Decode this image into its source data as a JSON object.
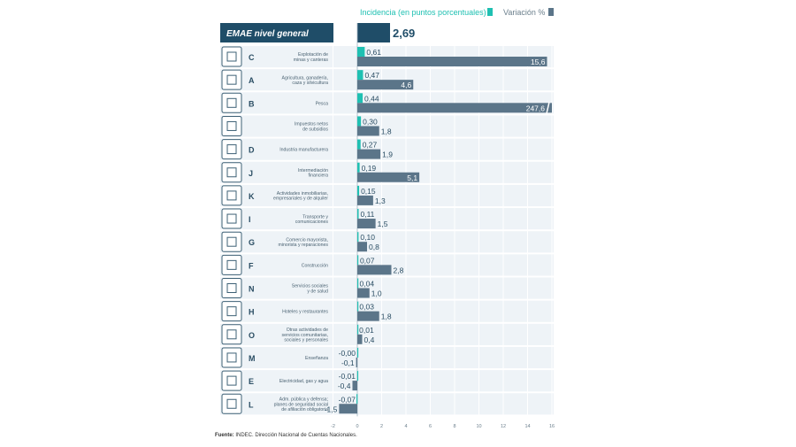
{
  "legend": {
    "incidence": "Incidencia (en puntos porcentuales)",
    "variation": "Variación %"
  },
  "colors": {
    "incidence": "#1fc0b2",
    "variation": "#5b7589",
    "header": "#1f4d68",
    "row_bg": "#eef3f7",
    "icon_border": "#3e6176"
  },
  "header": {
    "label": "EMAE nivel general",
    "value": "2,69"
  },
  "source": {
    "label": "Fuente:",
    "text": " INDEC. Dirección Nacional de Cuentas Nacionales."
  },
  "chart_data": {
    "type": "bar",
    "orientation": "horizontal",
    "title": "",
    "headline": {
      "label": "EMAE nivel general",
      "incidence": 2.69,
      "incidence_label": "2,69"
    },
    "xlim": [
      -2,
      16
    ],
    "x_ticks": [
      "-2",
      "0",
      "2",
      "4",
      "6",
      "8",
      "10",
      "12",
      "14",
      "16"
    ],
    "grid": true,
    "legend_position": "top-right",
    "categories": [
      {
        "code": "C",
        "icon": "mining-icon",
        "lines": [
          "Explotación de",
          "minas y canteras"
        ],
        "inc": 0.61,
        "inc_label": "0,61",
        "var": 15.6,
        "var_label": "15,6"
      },
      {
        "code": "A",
        "icon": "agriculture-icon",
        "lines": [
          "Agricultura, ganadería,",
          "caza y silvicultura"
        ],
        "inc": 0.47,
        "inc_label": "0,47",
        "var": 4.6,
        "var_label": "4,6"
      },
      {
        "code": "B",
        "icon": "fish-icon",
        "lines": [
          "Pesca"
        ],
        "inc": 0.44,
        "inc_label": "0,44",
        "var": 247.6,
        "var_label": "247,6",
        "truncated": true
      },
      {
        "code": "",
        "icon": "tax-document-icon",
        "lines": [
          "Impuestos netos",
          "de subsidios"
        ],
        "inc": 0.3,
        "inc_label": "0,30",
        "var": 1.8,
        "var_label": "1,8"
      },
      {
        "code": "D",
        "icon": "gears-icon",
        "lines": [
          "Industria manufacturera"
        ],
        "inc": 0.27,
        "inc_label": "0,27",
        "var": 1.9,
        "var_label": "1,9"
      },
      {
        "code": "J",
        "icon": "bank-icon",
        "lines": [
          "Intermediación",
          "financiera"
        ],
        "inc": 0.19,
        "inc_label": "0,19",
        "var": 5.1,
        "var_label": "5,1"
      },
      {
        "code": "K",
        "icon": "real-estate-icon",
        "lines": [
          "Actividades inmobiliarias,",
          "empresariales y de alquiler"
        ],
        "inc": 0.15,
        "inc_label": "0,15",
        "var": 1.3,
        "var_label": "1,3"
      },
      {
        "code": "I",
        "icon": "transport-icon",
        "lines": [
          "Transporte y",
          "comunicaciones"
        ],
        "inc": 0.11,
        "inc_label": "0,11",
        "var": 1.5,
        "var_label": "1,5"
      },
      {
        "code": "G",
        "icon": "shopping-cart-icon",
        "lines": [
          "Comercio mayorista,",
          "minorista y reparaciones"
        ],
        "inc": 0.1,
        "inc_label": "0,10",
        "var": 0.8,
        "var_label": "0,8"
      },
      {
        "code": "F",
        "icon": "construction-icon",
        "lines": [
          "Construcción"
        ],
        "inc": 0.07,
        "inc_label": "0,07",
        "var": 2.8,
        "var_label": "2,8"
      },
      {
        "code": "N",
        "icon": "health-cross-icon",
        "lines": [
          "Servicios sociales",
          "y de salud"
        ],
        "inc": 0.04,
        "inc_label": "0,04",
        "var": 1.0,
        "var_label": "1,0"
      },
      {
        "code": "H",
        "icon": "restaurant-icon",
        "lines": [
          "Hoteles y restaurantes"
        ],
        "inc": 0.03,
        "inc_label": "0,03",
        "var": 1.8,
        "var_label": "1,8"
      },
      {
        "code": "O",
        "icon": "community-icon",
        "lines": [
          "Otras actividades de",
          "servicios comunitarias,",
          "sociales y personales"
        ],
        "inc": 0.01,
        "inc_label": "0,01",
        "var": 0.4,
        "var_label": "0,4"
      },
      {
        "code": "M",
        "icon": "education-book-icon",
        "lines": [
          "Enseñanza"
        ],
        "inc": -0.004,
        "inc_label": "-0,00",
        "var": -0.1,
        "var_label": "-0,1"
      },
      {
        "code": "E",
        "icon": "utilities-icon",
        "lines": [
          "Electricidad, gas y agua"
        ],
        "inc": -0.01,
        "inc_label": "-0,01",
        "var": -0.4,
        "var_label": "-0,4"
      },
      {
        "code": "L",
        "icon": "government-icon",
        "lines": [
          "Adm. pública y defensa;",
          "planes de seguridad social",
          "de afiliación obligatoria"
        ],
        "inc": -0.07,
        "inc_label": "-0,07",
        "var": -1.5,
        "var_label": "-1,5"
      }
    ]
  }
}
